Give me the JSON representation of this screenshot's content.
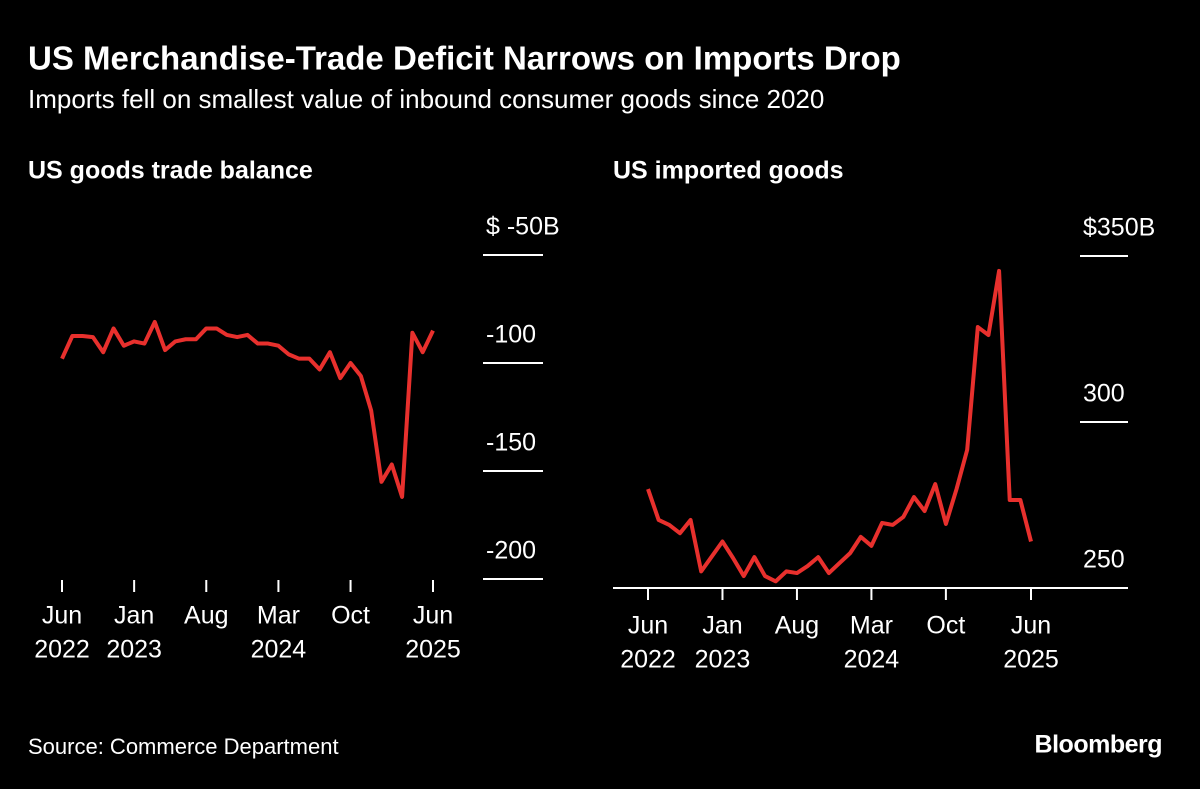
{
  "title": "US Merchandise-Trade Deficit Narrows on Imports Drop",
  "subtitle": "Imports fell on smallest value of inbound consumer goods since 2020",
  "source": "Source: Commerce Department",
  "brand": "Bloomberg",
  "chart_data": [
    {
      "type": "line",
      "title": "US goods trade balance",
      "color": "#e8302d",
      "axis_line": false,
      "x": [
        "2022-06",
        "2022-07",
        "2022-08",
        "2022-09",
        "2022-10",
        "2022-11",
        "2022-12",
        "2023-01",
        "2023-02",
        "2023-03",
        "2023-04",
        "2023-05",
        "2023-06",
        "2023-07",
        "2023-08",
        "2023-09",
        "2023-10",
        "2023-11",
        "2023-12",
        "2024-01",
        "2024-02",
        "2024-03",
        "2024-04",
        "2024-05",
        "2024-06",
        "2024-07",
        "2024-08",
        "2024-09",
        "2024-10",
        "2024-11",
        "2024-12",
        "2025-01",
        "2025-02",
        "2025-03",
        "2025-04",
        "2025-05",
        "2025-06"
      ],
      "values": [
        -98,
        -87.5,
        -87.5,
        -88,
        -95,
        -84,
        -92,
        -90,
        -91,
        -81,
        -94,
        -90,
        -89,
        -89,
        -84,
        -84,
        -87,
        -88,
        -87,
        -91,
        -91,
        -92,
        -96,
        -98,
        -98,
        -103,
        -95,
        -107,
        -100,
        -106,
        -122,
        -155,
        -147,
        -162,
        -86,
        -95,
        -85
      ],
      "ylim": [
        -200,
        -50
      ],
      "yticks": [
        {
          "value": -50,
          "label": "$ -50B"
        },
        -100,
        -150,
        -200
      ],
      "xticks": [
        {
          "value": "2022-06",
          "label": [
            "Jun",
            "2022"
          ]
        },
        {
          "value": "2023-01",
          "label": [
            "Jan",
            "2023"
          ]
        },
        {
          "value": "2023-08",
          "label": [
            "Aug"
          ]
        },
        {
          "value": "2024-03",
          "label": [
            "Mar",
            "2024"
          ]
        },
        {
          "value": "2024-10",
          "label": [
            "Oct"
          ]
        },
        {
          "value": "2025-06",
          "label": [
            "Jun",
            "2025"
          ]
        }
      ]
    },
    {
      "type": "line",
      "title": "US imported goods",
      "color": "#e8302d",
      "axis_line": true,
      "x": [
        "2022-06",
        "2022-07",
        "2022-08",
        "2022-09",
        "2022-10",
        "2022-11",
        "2022-12",
        "2023-01",
        "2023-02",
        "2023-03",
        "2023-04",
        "2023-05",
        "2023-06",
        "2023-07",
        "2023-08",
        "2023-09",
        "2023-10",
        "2023-11",
        "2023-12",
        "2024-01",
        "2024-02",
        "2024-03",
        "2024-04",
        "2024-05",
        "2024-06",
        "2024-07",
        "2024-08",
        "2024-09",
        "2024-10",
        "2024-11",
        "2024-12",
        "2025-01",
        "2025-02",
        "2025-03",
        "2025-04",
        "2025-05",
        "2025-06"
      ],
      "values": [
        279.8,
        270.5,
        269,
        266.5,
        270.5,
        255,
        259.5,
        264,
        259,
        253.6,
        259.3,
        253.6,
        252,
        255,
        254.5,
        256.6,
        259.3,
        254.5,
        257.5,
        260.5,
        265.4,
        262.7,
        269.6,
        269,
        271.4,
        277.4,
        273.2,
        281.3,
        269.3,
        279.8,
        291.6,
        328.6,
        326.2,
        345.5,
        276.5,
        276.5,
        264
      ],
      "ylim": [
        250,
        350
      ],
      "yticks": [
        {
          "value": 350,
          "label": "$350B"
        },
        300,
        250
      ],
      "xticks": [
        {
          "value": "2022-06",
          "label": [
            "Jun",
            "2022"
          ]
        },
        {
          "value": "2023-01",
          "label": [
            "Jan",
            "2023"
          ]
        },
        {
          "value": "2023-08",
          "label": [
            "Aug"
          ]
        },
        {
          "value": "2024-03",
          "label": [
            "Mar",
            "2024"
          ]
        },
        {
          "value": "2024-10",
          "label": [
            "Oct"
          ]
        },
        {
          "value": "2025-06",
          "label": [
            "Jun",
            "2025"
          ]
        }
      ]
    }
  ]
}
